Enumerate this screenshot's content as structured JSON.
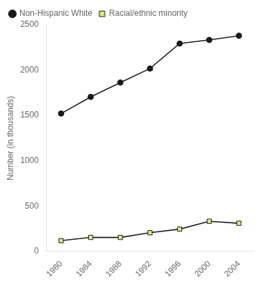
{
  "chart_data": {
    "type": "line",
    "x": [
      1980,
      1984,
      1988,
      1992,
      1996,
      2000,
      2004
    ],
    "series": [
      {
        "name": "Non-Hispanic White",
        "color": "#1a1a1a",
        "marker": "circle",
        "values": [
          1521.752,
          1705.393,
          1864.157,
          2018.456,
          2294.092,
          2333.896,
          2380.529
        ]
      },
      {
        "name": "Racial/ethnic minority",
        "color": "#dce680",
        "marker": "square",
        "values": [
          119.512,
          155.39,
          154.859,
          206.834,
          246.365,
          333.368,
          311.177
        ]
      }
    ],
    "color": "#1a1a1a",
    "ylabel": "Number (in thousands)",
    "xlim": [
      1978,
      2006
    ],
    "xticks": [
      1980,
      1984,
      1988,
      1992,
      1996,
      2000,
      2004
    ],
    "ylim": [
      0,
      2500
    ],
    "yticks": [
      0,
      500,
      1000,
      1500,
      2000,
      2500
    ],
    "grid": false,
    "legend": "upper left"
  }
}
